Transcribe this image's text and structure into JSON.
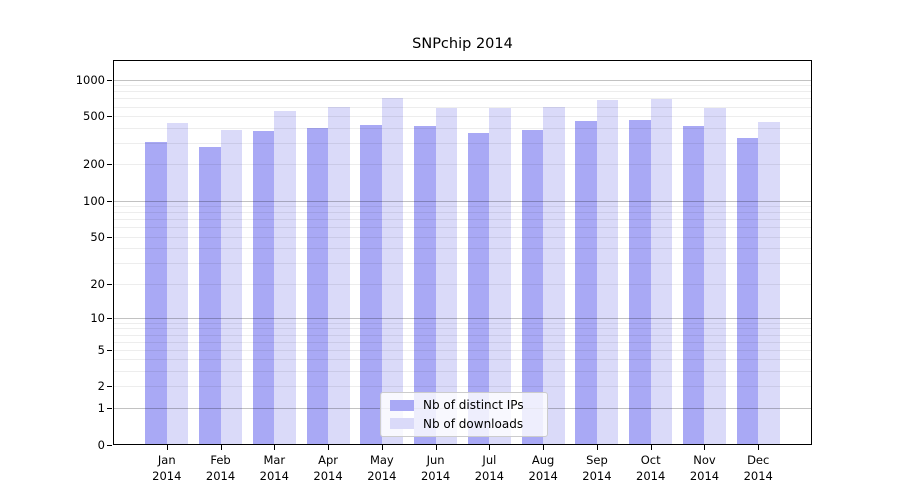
{
  "chart_data": {
    "type": "bar",
    "title": "SNPchip 2014",
    "categories": [
      "Jan 2014",
      "Feb 2014",
      "Mar 2014",
      "Apr 2014",
      "May 2014",
      "Jun 2014",
      "Jul 2014",
      "Aug 2014",
      "Sep 2014",
      "Oct 2014",
      "Nov 2014",
      "Dec 2014"
    ],
    "series": [
      {
        "name": "Nb of distinct IPs",
        "color": "#a9a9f5",
        "values": [
          306,
          276,
          375,
          400,
          422,
          414,
          363,
          384,
          455,
          464,
          418,
          330
        ]
      },
      {
        "name": "Nb of downloads",
        "color": "#dadaf9",
        "values": [
          438,
          384,
          551,
          594,
          705,
          580,
          580,
          594,
          678,
          691,
          580,
          446
        ]
      }
    ],
    "xlabel": "",
    "ylabel": "",
    "yscale": "log1p",
    "yticks": [
      0,
      1,
      2,
      5,
      10,
      20,
      50,
      100,
      200,
      500,
      1000
    ],
    "ylim": [
      0,
      1450
    ],
    "xlim_units": [
      -1,
      12
    ],
    "bar_width_units": 0.4,
    "grid": true,
    "grid_minor": true,
    "legend_position": "lower center"
  }
}
